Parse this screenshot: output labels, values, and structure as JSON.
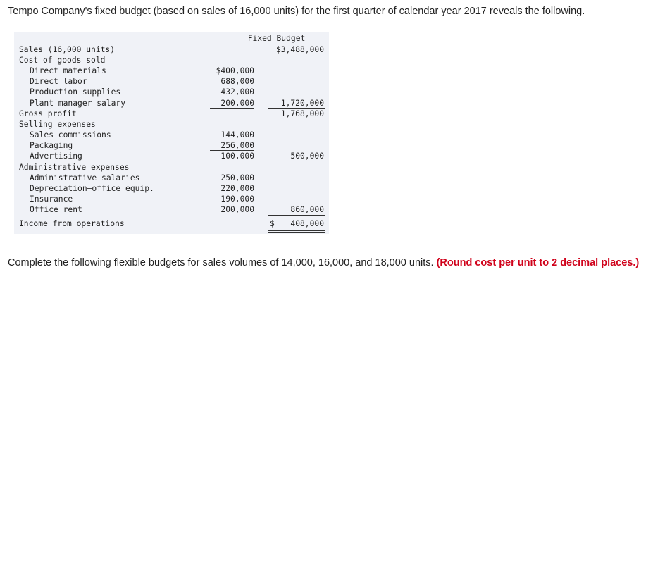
{
  "intro": "Tempo Company's fixed budget (based on sales of 16,000 units) for the first quarter of calendar year 2017 reveals the following.",
  "table": {
    "header": "Fixed Budget",
    "rows": [
      {
        "label": "Sales (16,000 units)",
        "c2": "$3,488,000"
      },
      {
        "label": "Cost of goods sold"
      },
      {
        "label": "Direct materials",
        "c1": "$400,000"
      },
      {
        "label": "Direct labor",
        "c1": "688,000"
      },
      {
        "label": "Production supplies",
        "c1": "432,000"
      },
      {
        "label": "Plant manager salary",
        "c1": "200,000",
        "c2": "1,720,000"
      },
      {
        "label": "Gross profit",
        "c2": "1,768,000"
      },
      {
        "label": "Selling expenses"
      },
      {
        "label": "Sales commissions",
        "c1": "144,000"
      },
      {
        "label": "Packaging",
        "c1": "256,000"
      },
      {
        "label": "Advertising",
        "c1": "100,000",
        "c2": "500,000"
      },
      {
        "label": "Administrative expenses"
      },
      {
        "label": "Administrative salaries",
        "c1": "250,000"
      },
      {
        "label": "Depreciation—office equip.",
        "c1": "220,000"
      },
      {
        "label": "Insurance",
        "c1": "190,000"
      },
      {
        "label": "Office rent",
        "c1": "200,000",
        "c2": "860,000"
      },
      {
        "label": "Income from operations",
        "c2": "408,000",
        "c2_prefix": "$"
      }
    ]
  },
  "instruction": {
    "text": "Complete the following flexible budgets for sales volumes of 14,000, 16,000, and 18,000 units. ",
    "emphasis": "(Round cost per unit to 2 decimal places.)"
  }
}
